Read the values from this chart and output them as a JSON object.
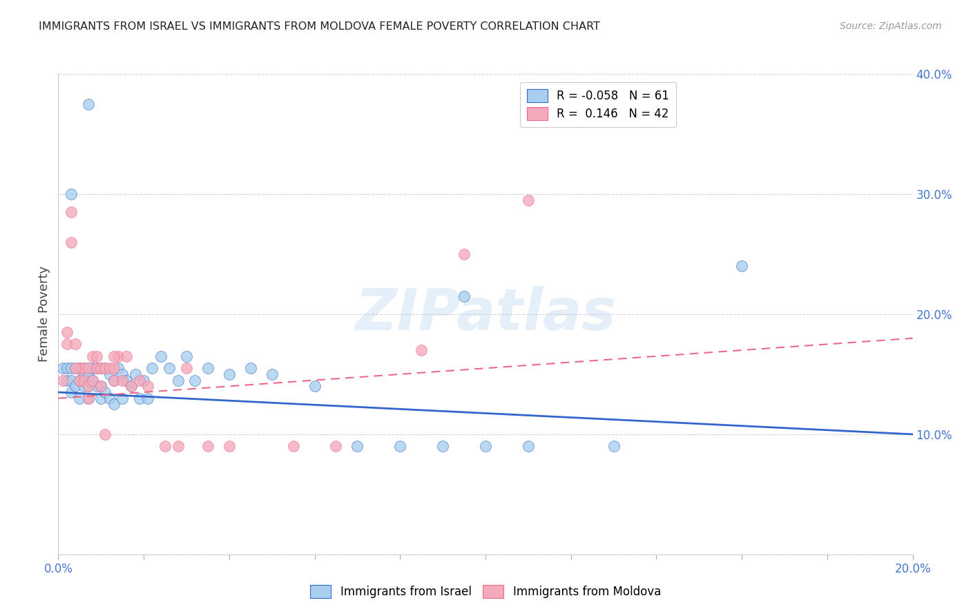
{
  "title": "IMMIGRANTS FROM ISRAEL VS IMMIGRANTS FROM MOLDOVA FEMALE POVERTY CORRELATION CHART",
  "source": "Source: ZipAtlas.com",
  "ylabel": "Female Poverty",
  "legend_label1": "Immigrants from Israel",
  "legend_label2": "Immigrants from Moldova",
  "r1": "-0.058",
  "n1": "61",
  "r2": " 0.146",
  "n2": "42",
  "color1": "#A8CFEE",
  "color2": "#F4AABB",
  "trendline1_color": "#3366CC",
  "trendline2_color": "#EE6688",
  "xlim": [
    0.0,
    0.2
  ],
  "ylim": [
    0.0,
    0.4
  ],
  "xticks_minor": [
    0.0,
    0.02,
    0.04,
    0.06,
    0.08,
    0.1,
    0.12,
    0.14,
    0.16,
    0.18,
    0.2
  ],
  "yticks": [
    0.0,
    0.1,
    0.2,
    0.3,
    0.4
  ],
  "watermark": "ZIPatlas",
  "background": "#FFFFFF",
  "israel_x": [
    0.001,
    0.002,
    0.002,
    0.003,
    0.003,
    0.003,
    0.004,
    0.004,
    0.005,
    0.005,
    0.005,
    0.006,
    0.006,
    0.006,
    0.007,
    0.007,
    0.007,
    0.007,
    0.008,
    0.008,
    0.009,
    0.009,
    0.01,
    0.01,
    0.01,
    0.011,
    0.011,
    0.012,
    0.012,
    0.013,
    0.013,
    0.014,
    0.015,
    0.015,
    0.016,
    0.017,
    0.018,
    0.019,
    0.02,
    0.021,
    0.022,
    0.024,
    0.026,
    0.028,
    0.03,
    0.032,
    0.035,
    0.04,
    0.045,
    0.05,
    0.06,
    0.07,
    0.08,
    0.09,
    0.1,
    0.11,
    0.13,
    0.003,
    0.007,
    0.16,
    0.095
  ],
  "israel_y": [
    0.155,
    0.155,
    0.145,
    0.155,
    0.145,
    0.135,
    0.155,
    0.14,
    0.155,
    0.145,
    0.13,
    0.155,
    0.15,
    0.14,
    0.155,
    0.15,
    0.14,
    0.13,
    0.155,
    0.145,
    0.155,
    0.14,
    0.155,
    0.14,
    0.13,
    0.155,
    0.135,
    0.15,
    0.13,
    0.145,
    0.125,
    0.155,
    0.15,
    0.13,
    0.145,
    0.14,
    0.15,
    0.13,
    0.145,
    0.13,
    0.155,
    0.165,
    0.155,
    0.145,
    0.165,
    0.145,
    0.155,
    0.15,
    0.155,
    0.15,
    0.14,
    0.09,
    0.09,
    0.09,
    0.09,
    0.09,
    0.09,
    0.3,
    0.375,
    0.24,
    0.215
  ],
  "moldova_x": [
    0.001,
    0.002,
    0.003,
    0.003,
    0.004,
    0.005,
    0.005,
    0.006,
    0.006,
    0.007,
    0.007,
    0.007,
    0.008,
    0.008,
    0.009,
    0.01,
    0.01,
    0.011,
    0.011,
    0.012,
    0.013,
    0.013,
    0.014,
    0.015,
    0.016,
    0.017,
    0.019,
    0.021,
    0.025,
    0.028,
    0.03,
    0.035,
    0.04,
    0.055,
    0.065,
    0.085,
    0.095,
    0.11,
    0.002,
    0.004,
    0.009,
    0.013
  ],
  "moldova_y": [
    0.145,
    0.175,
    0.285,
    0.26,
    0.175,
    0.145,
    0.155,
    0.155,
    0.145,
    0.155,
    0.14,
    0.13,
    0.165,
    0.145,
    0.155,
    0.14,
    0.155,
    0.155,
    0.1,
    0.155,
    0.155,
    0.145,
    0.165,
    0.145,
    0.165,
    0.14,
    0.145,
    0.14,
    0.09,
    0.09,
    0.155,
    0.09,
    0.09,
    0.09,
    0.09,
    0.17,
    0.25,
    0.295,
    0.185,
    0.155,
    0.165,
    0.165
  ],
  "trendline1_x": [
    0.0,
    0.2
  ],
  "trendline1_y": [
    0.135,
    0.1
  ],
  "trendline2_x": [
    0.0,
    0.2
  ],
  "trendline2_y": [
    0.13,
    0.18
  ]
}
